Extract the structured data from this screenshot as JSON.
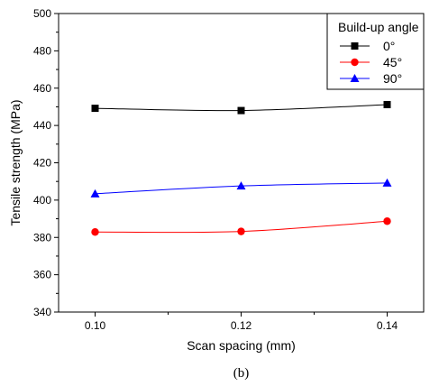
{
  "chart_data": {
    "type": "line",
    "x": [
      0.1,
      0.12,
      0.14
    ],
    "x_tick_labels": [
      "0.10",
      "0.12",
      "0.14"
    ],
    "xlim": [
      0.095,
      0.145
    ],
    "ylim": [
      340,
      500
    ],
    "y_ticks": [
      340,
      360,
      380,
      400,
      420,
      440,
      460,
      480,
      500
    ],
    "y_tick_labels": [
      "340",
      "360",
      "380",
      "400",
      "420",
      "440",
      "460",
      "480",
      "500"
    ],
    "xlabel": "Scan spacing (mm)",
    "ylabel": "Tensile strength (MPa)",
    "legend_title": "Build-up angle",
    "legend_position": "top-right",
    "grid": false,
    "series": [
      {
        "name": "0°",
        "values": [
          449.2,
          448.0,
          451.2
        ],
        "color": "#000000",
        "marker": "square"
      },
      {
        "name": "45°",
        "values": [
          382.9,
          383.2,
          388.7
        ],
        "color": "#ff0000",
        "marker": "circle"
      },
      {
        "name": "90°",
        "values": [
          403.4,
          407.6,
          409.2
        ],
        "color": "#0000ff",
        "marker": "triangle"
      }
    ]
  },
  "caption": "(b)"
}
